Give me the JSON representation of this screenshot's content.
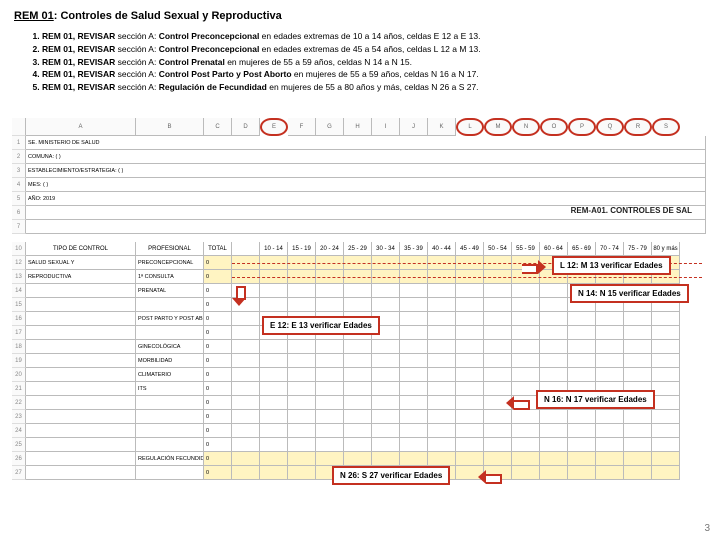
{
  "title_u": "REM 01",
  "title_rest": ": Controles de Salud Sexual y Reproductiva",
  "items": [
    {
      "pre": "REM 01, ",
      "rev": "REVISAR",
      "mid": " sección A: ",
      "ctl": "Control Preconcepcional",
      "post": " en edades extremas de 10 a 14 años, celdas E 12 a E 13."
    },
    {
      "pre": "REM 01, ",
      "rev": "REVISAR",
      "mid": " sección A: ",
      "ctl": "Control Preconcepcional",
      "post": " en edades extremas de 45 a 54 años, celdas L 12 a M 13."
    },
    {
      "pre": "REM 01, ",
      "rev": "REVISAR",
      "mid": " sección A: ",
      "ctl": "Control Prenatal",
      "post": " en mujeres de 55 a 59 años, celdas N 14 a N 15."
    },
    {
      "pre": "REM 01, ",
      "rev": "REVISAR",
      "mid": " sección A: ",
      "ctl": "Control Post Parto y Post Aborto",
      "post": " en mujeres de 55 a 59 años, celdas N 16 a N 17."
    },
    {
      "pre": "REM 01, ",
      "rev": "REVISAR",
      "mid": " sección A: ",
      "ctl": "Regulación de Fecundidad",
      "post": " en mujeres de 55 a 80 años y más, celdas N 26 a S 27."
    }
  ],
  "col_letters": [
    "A",
    "B",
    "C",
    "D",
    "E",
    "F",
    "G",
    "H",
    "I",
    "J",
    "K",
    "L",
    "M",
    "N",
    "O",
    "P",
    "Q",
    "R",
    "S"
  ],
  "meta_rows": [
    {
      "n": "1",
      "a": "SE. MINISTERIO DE SALUD"
    },
    {
      "n": "2",
      "a": "COMUNA: ( )"
    },
    {
      "n": "3",
      "a": "ESTABLECIMIENTO/ESTRATEGIA: ( )"
    },
    {
      "n": "4",
      "a": "MES: ( )"
    },
    {
      "n": "5",
      "a": "AÑO: 2019"
    },
    {
      "n": "6",
      "a": ""
    },
    {
      "n": "7",
      "a": ""
    }
  ],
  "rem_header": "REM-A01. CONTROLES DE SAL",
  "grid_header_letters": [
    "A",
    "B",
    "C",
    "D",
    "E",
    "F",
    "G",
    "H",
    "I",
    "J",
    "K",
    "L",
    "M",
    "N",
    "O",
    "P",
    "Q",
    "R",
    "S"
  ],
  "age_headers": [
    "TOTAL",
    "",
    "10 - 14",
    "15 - 19",
    "20 - 24",
    "25 - 29",
    "30 - 34",
    "35 - 39",
    "40 - 44",
    "45 - 49",
    "50 - 54",
    "55 - 59",
    "60 - 64",
    "65 - 69",
    "70 - 74",
    "75 - 79",
    "80 y más"
  ],
  "data_rows": [
    {
      "n": "12",
      "a": "SALUD SEXUAL Y",
      "b": "PRECONCEPCIONAL",
      "vals": [
        "0",
        "",
        "",
        "",
        "",
        "",
        "",
        "",
        "",
        "",
        "",
        "",
        "",
        "",
        "",
        "",
        ""
      ]
    },
    {
      "n": "13",
      "a": "REPRODUCTIVA",
      "b": "1ª CONSULTA",
      "vals": [
        "0",
        "",
        "",
        "",
        "",
        "",
        "",
        "",
        "",
        "",
        "",
        "",
        "",
        "",
        "",
        "",
        ""
      ]
    },
    {
      "n": "14",
      "a": "",
      "b": "PRENATAL",
      "vals": [
        "0",
        "",
        "",
        "",
        "",
        "",
        "",
        "",
        "",
        "",
        "",
        "",
        "",
        "",
        "",
        "",
        ""
      ]
    },
    {
      "n": "15",
      "a": "",
      "b": "",
      "vals": [
        "0",
        "",
        "",
        "",
        "",
        "",
        "",
        "",
        "",
        "",
        "",
        "",
        "",
        "",
        "",
        "",
        ""
      ]
    },
    {
      "n": "16",
      "a": "",
      "b": "POST PARTO Y POST ABORTO",
      "vals": [
        "0",
        "",
        "",
        "",
        "",
        "",
        "",
        "",
        "",
        "",
        "",
        "",
        "",
        "",
        "",
        "",
        ""
      ]
    },
    {
      "n": "17",
      "a": "",
      "b": "",
      "vals": [
        "0",
        "",
        "",
        "",
        "",
        "",
        "",
        "",
        "",
        "",
        "",
        "",
        "",
        "",
        "",
        "",
        ""
      ]
    },
    {
      "n": "18",
      "a": "",
      "b": "GINECOLÓGICA",
      "vals": [
        "0",
        "",
        "",
        "",
        "",
        "",
        "",
        "",
        "",
        "",
        "",
        "",
        "",
        "",
        "",
        "",
        ""
      ]
    },
    {
      "n": "19",
      "a": "",
      "b": "MORBILIDAD",
      "vals": [
        "0",
        "",
        "",
        "",
        "",
        "",
        "",
        "",
        "",
        "",
        "",
        "",
        "",
        "",
        "",
        "",
        ""
      ]
    },
    {
      "n": "20",
      "a": "",
      "b": "CLIMATERIO",
      "vals": [
        "0",
        "",
        "",
        "",
        "",
        "",
        "",
        "",
        "",
        "",
        "",
        "",
        "",
        "",
        "",
        "",
        ""
      ]
    },
    {
      "n": "21",
      "a": "",
      "b": "ITS",
      "vals": [
        "0",
        "",
        "",
        "",
        "",
        "",
        "",
        "",
        "",
        "",
        "",
        "",
        "",
        "",
        "",
        "",
        ""
      ]
    },
    {
      "n": "22",
      "a": "",
      "b": "",
      "vals": [
        "0",
        "",
        "",
        "",
        "",
        "",
        "",
        "",
        "",
        "",
        "",
        "",
        "",
        "",
        "",
        "",
        ""
      ]
    },
    {
      "n": "23",
      "a": "",
      "b": "",
      "vals": [
        "0",
        "",
        "",
        "",
        "",
        "",
        "",
        "",
        "",
        "",
        "",
        "",
        "",
        "",
        "",
        "",
        ""
      ]
    },
    {
      "n": "24",
      "a": "",
      "b": "",
      "vals": [
        "0",
        "",
        "",
        "",
        "",
        "",
        "",
        "",
        "",
        "",
        "",
        "",
        "",
        "",
        "",
        "",
        ""
      ]
    },
    {
      "n": "25",
      "a": "",
      "b": "",
      "vals": [
        "0",
        "",
        "",
        "",
        "",
        "",
        "",
        "",
        "",
        "",
        "",
        "",
        "",
        "",
        "",
        "",
        ""
      ]
    },
    {
      "n": "26",
      "a": "",
      "b": "REGULACIÓN FECUNDIDAD",
      "vals": [
        "0",
        "",
        "",
        "",
        "",
        "",
        "",
        "",
        "",
        "",
        "",
        "",
        "",
        "",
        "",
        "",
        ""
      ]
    },
    {
      "n": "27",
      "a": "",
      "b": "",
      "vals": [
        "0",
        "",
        "",
        "",
        "",
        "",
        "",
        "",
        "",
        "",
        "",
        "",
        "",
        "",
        "",
        "",
        ""
      ]
    }
  ],
  "callouts": {
    "c1": "L 12: M 13 verificar Edades",
    "c2": "N 14: N 15 verificar Edades",
    "c3": "E 12: E 13 verificar Edades",
    "c4": "N 16: N 17 verificar Edades",
    "c5": "N 26: S 27 verificar Edades"
  },
  "ui": {
    "colors": {
      "highlight_border": "#c43020",
      "yellow": "#fff4c2"
    }
  },
  "page_number": "3"
}
